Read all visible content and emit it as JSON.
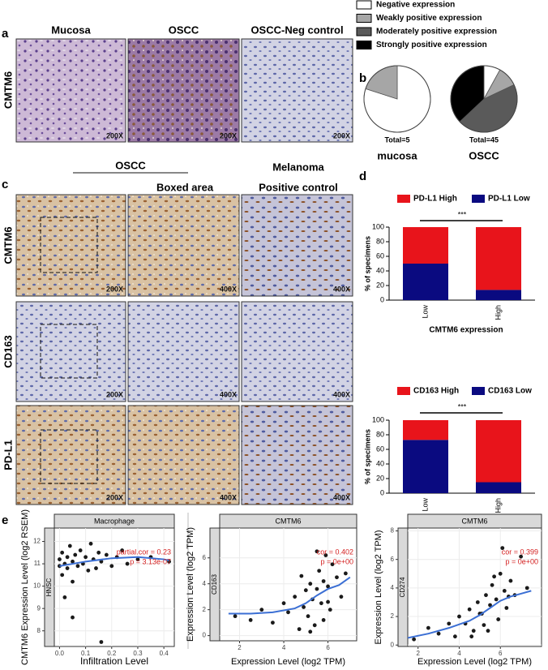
{
  "panel_labels": [
    "a",
    "b",
    "c",
    "d",
    "e"
  ],
  "panel_a": {
    "columns": [
      "Mucosa",
      "OSCC",
      "OSCC-Neg control"
    ],
    "row_label": "CMTM6",
    "magnifications": [
      "200X",
      "200X",
      "200X"
    ]
  },
  "panel_c": {
    "group_headers": [
      "OSCC",
      "Melanoma"
    ],
    "column_headers": [
      "Boxed area",
      "Positive control"
    ],
    "rows": [
      {
        "label": "CMTM6",
        "magnifications": [
          "200X",
          "400X",
          "400X"
        ]
      },
      {
        "label": "CD163",
        "magnifications": [
          "200X",
          "400X",
          "400X"
        ]
      },
      {
        "label": "PD-L1",
        "magnifications": [
          "200X",
          "400X",
          "400X"
        ]
      }
    ]
  },
  "pie_legend": {
    "labels": [
      "Negative expression",
      "Weakly positive expression",
      "Moderately positive expression",
      "Strongly positive expression"
    ],
    "colors": [
      "#ffffff",
      "#a6a6a6",
      "#5a5a5a",
      "#000000"
    ]
  },
  "chart_data": [
    {
      "type": "pie",
      "title": "mucosa",
      "total_label": "Total=5",
      "values": [
        80,
        20,
        0,
        0
      ]
    },
    {
      "type": "pie",
      "title": "OSCC",
      "total_label": "Total=45",
      "values": [
        8,
        10,
        45,
        37
      ]
    },
    {
      "type": "bar",
      "stacked": true,
      "categories": [
        "Low",
        "High"
      ],
      "xlabel": "CMTM6 expression",
      "ylabel": "% of specimens",
      "annotation": "***",
      "series": [
        {
          "name": "PD-L1 High",
          "color": "#e8141b",
          "values": [
            50,
            86
          ]
        },
        {
          "name": "PD-L1 Low",
          "color": "#0a0a80",
          "values": [
            50,
            14
          ]
        }
      ],
      "ylim": [
        0,
        100
      ],
      "yticks": [
        0,
        20,
        40,
        60,
        80,
        100
      ]
    },
    {
      "type": "bar",
      "stacked": true,
      "categories": [
        "Low",
        "High"
      ],
      "xlabel": "CMTM6 expression",
      "ylabel": "% of specimens",
      "annotation": "***",
      "series": [
        {
          "name": "CD163 High",
          "color": "#e8141b",
          "values": [
            27,
            85
          ]
        },
        {
          "name": "CD163 Low",
          "color": "#0a0a80",
          "values": [
            73,
            15
          ]
        }
      ],
      "ylim": [
        0,
        100
      ],
      "yticks": [
        0,
        20,
        40,
        60,
        80,
        100
      ]
    },
    {
      "type": "scatter",
      "strip": "Macrophage",
      "side_strip": "HNSC",
      "xlabel": "Infiltration Level",
      "ylabel": "CMTM6 Expression Level (log2 RSEM)",
      "annotations": [
        "partial.cor = 0.23",
        "p = 3.13e-07"
      ],
      "color": "#1a1a1a",
      "fit_color": "#3b6fd4",
      "xlim": [
        -0.02,
        0.44
      ],
      "xticks": [
        {
          "value": 0,
          "label": "0.0"
        },
        {
          "value": 0.1,
          "label": "0.1"
        },
        {
          "value": 0.2,
          "label": "0.2"
        },
        {
          "value": 0.3,
          "label": "0.3"
        },
        {
          "value": 0.4,
          "label": "0.4"
        }
      ],
      "ylim": [
        7.3,
        12.6
      ],
      "yticks": [
        8,
        9,
        10,
        11,
        12
      ],
      "x": [
        0.0,
        0.0,
        0.01,
        0.01,
        0.02,
        0.02,
        0.03,
        0.03,
        0.04,
        0.05,
        0.05,
        0.06,
        0.07,
        0.08,
        0.09,
        0.1,
        0.11,
        0.12,
        0.13,
        0.14,
        0.15,
        0.16,
        0.18,
        0.2,
        0.22,
        0.24,
        0.26,
        0.3,
        0.35,
        0.42,
        0.05,
        0.16
      ],
      "y": [
        10.9,
        11.2,
        10.5,
        11.5,
        11.0,
        9.5,
        11.3,
        10.8,
        11.8,
        10.2,
        11.1,
        11.4,
        10.9,
        11.6,
        11.0,
        11.3,
        10.7,
        11.9,
        11.2,
        10.8,
        11.5,
        11.1,
        11.4,
        10.9,
        11.3,
        11.6,
        11.0,
        11.2,
        11.3,
        11.1,
        8.6,
        7.5
      ],
      "fit_x": [
        0,
        0.1,
        0.2,
        0.3,
        0.4,
        0.42
      ],
      "fit_y": [
        10.9,
        11.1,
        11.25,
        11.3,
        11.2,
        11.15
      ]
    },
    {
      "type": "scatter",
      "strip": "CMTM6",
      "side_strip": "CD163",
      "xlabel": "Expression Level (log2 TPM)",
      "ylabel": "Expression Level (log2 TPM)",
      "annotations": [
        "cor = 0.402",
        "p = 0e+00"
      ],
      "color": "#1a1a1a",
      "fit_color": "#3b6fd4",
      "xlim": [
        1.1,
        7.3
      ],
      "xticks": [
        2,
        4,
        6
      ],
      "ylim": [
        -0.4,
        8.3
      ],
      "yticks": [
        0,
        2,
        4,
        6
      ],
      "x": [
        1.8,
        2.5,
        3.0,
        3.5,
        4.0,
        4.2,
        4.5,
        4.7,
        4.9,
        5.0,
        5.1,
        5.2,
        5.3,
        5.4,
        5.5,
        5.6,
        5.7,
        5.8,
        5.9,
        6.0,
        6.1,
        6.2,
        6.4,
        6.6,
        6.8,
        5.5,
        5.8,
        6.0,
        4.8,
        5.2
      ],
      "y": [
        1.5,
        1.2,
        2.0,
        1.0,
        2.5,
        1.8,
        3.0,
        0.5,
        2.2,
        3.5,
        1.5,
        4.0,
        2.8,
        0.8,
        3.6,
        5.0,
        2.5,
        4.2,
        6.2,
        3.8,
        2.0,
        5.5,
        4.5,
        3.0,
        4.8,
        6.5,
        1.2,
        2.6,
        4.6,
        0.3
      ],
      "fit_x": [
        1.5,
        2.5,
        3.5,
        4.5,
        5.0,
        5.5,
        6.0,
        6.5,
        7.0
      ],
      "fit_y": [
        1.7,
        1.7,
        1.8,
        2.1,
        2.5,
        3.1,
        3.6,
        3.9,
        4.5
      ]
    },
    {
      "type": "scatter",
      "strip": "CMTM6",
      "side_strip": "CD274",
      "xlabel": "Expression Level (log2 TPM)",
      "ylabel": "Expression Level (log2 TPM)",
      "annotations": [
        "cor = 0.399",
        "p = 0e+00"
      ],
      "color": "#1a1a1a",
      "fit_color": "#3b6fd4",
      "xlim": [
        1.5,
        8.0
      ],
      "xticks": [
        2,
        4,
        6
      ],
      "ylim": [
        -0.1,
        8.2
      ],
      "yticks": [
        0,
        2,
        4,
        6,
        8
      ],
      "x": [
        1.8,
        2.5,
        3.0,
        3.5,
        3.8,
        4.0,
        4.3,
        4.5,
        4.7,
        4.9,
        5.0,
        5.2,
        5.3,
        5.5,
        5.6,
        5.8,
        5.9,
        6.0,
        6.2,
        6.3,
        6.5,
        6.7,
        7.0,
        5.4,
        5.7,
        6.1,
        4.6,
        5.1,
        6.4,
        7.3
      ],
      "y": [
        0.4,
        1.2,
        0.8,
        1.5,
        0.6,
        2.0,
        1.5,
        2.5,
        1.0,
        3.0,
        2.2,
        1.4,
        3.5,
        2.8,
        4.2,
        3.2,
        1.8,
        5.0,
        3.8,
        2.6,
        4.5,
        3.5,
        6.2,
        1.0,
        4.8,
        6.8,
        0.6,
        2.2,
        3.4,
        4.0
      ],
      "fit_x": [
        1.5,
        2.5,
        3.5,
        4.5,
        5.0,
        5.5,
        6.0,
        6.5,
        7.0,
        7.5
      ],
      "fit_y": [
        0.5,
        0.8,
        1.2,
        1.7,
        2.1,
        2.6,
        3.1,
        3.4,
        3.6,
        3.8
      ]
    }
  ]
}
